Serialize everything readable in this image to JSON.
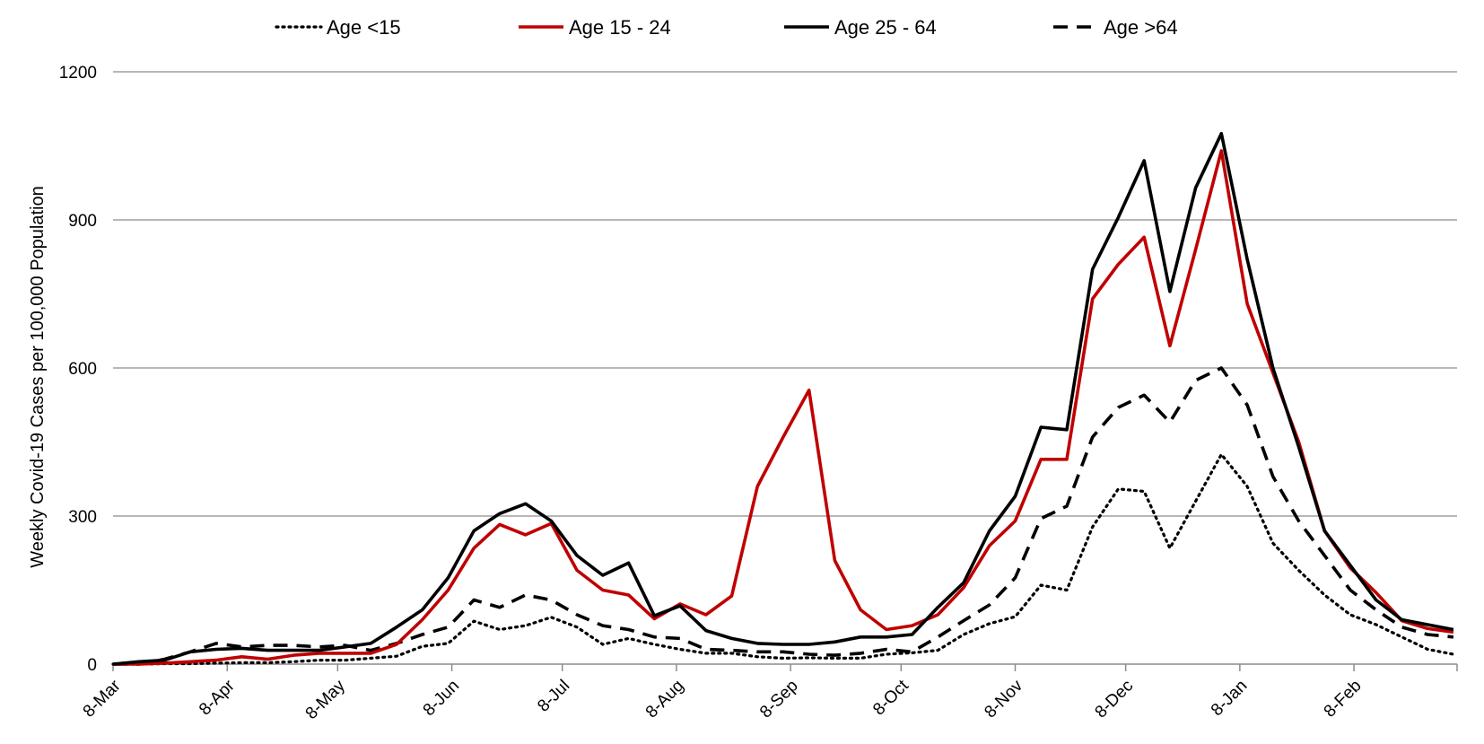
{
  "chart_data": {
    "type": "line",
    "title": "",
    "xlabel": "",
    "ylabel": "Weekly Covid-19 Cases per 100,000 Population",
    "ylim": [
      0,
      1200
    ],
    "yticks": [
      0,
      300,
      600,
      900,
      1200
    ],
    "xlim": [
      "2020-03-08",
      "2021-03-08"
    ],
    "xticks": [
      {
        "date": "2020-03-08",
        "label": "8-Mar"
      },
      {
        "date": "2020-04-08",
        "label": "8-Apr"
      },
      {
        "date": "2020-05-08",
        "label": "8-May"
      },
      {
        "date": "2020-06-08",
        "label": "8-Jun"
      },
      {
        "date": "2020-07-08",
        "label": "8-Jul"
      },
      {
        "date": "2020-08-08",
        "label": "8-Aug"
      },
      {
        "date": "2020-09-08",
        "label": "8-Sep"
      },
      {
        "date": "2020-10-08",
        "label": "8-Oct"
      },
      {
        "date": "2020-11-08",
        "label": "8-Nov"
      },
      {
        "date": "2020-12-08",
        "label": "8-Dec"
      },
      {
        "date": "2021-01-08",
        "label": "8-Jan"
      },
      {
        "date": "2021-02-08",
        "label": "8-Feb"
      }
    ],
    "grid": "horizontal",
    "legend_position": "top",
    "x": [
      "2020-03-08",
      "2020-03-15",
      "2020-03-22",
      "2020-03-29",
      "2020-04-05",
      "2020-04-12",
      "2020-04-19",
      "2020-04-26",
      "2020-05-03",
      "2020-05-10",
      "2020-05-17",
      "2020-05-24",
      "2020-05-31",
      "2020-06-07",
      "2020-06-14",
      "2020-06-21",
      "2020-06-28",
      "2020-07-05",
      "2020-07-12",
      "2020-07-19",
      "2020-07-26",
      "2020-08-02",
      "2020-08-09",
      "2020-08-16",
      "2020-08-23",
      "2020-08-30",
      "2020-09-06",
      "2020-09-13",
      "2020-09-20",
      "2020-09-27",
      "2020-10-04",
      "2020-10-11",
      "2020-10-18",
      "2020-10-25",
      "2020-11-01",
      "2020-11-08",
      "2020-11-15",
      "2020-11-22",
      "2020-11-29",
      "2020-12-06",
      "2020-12-13",
      "2020-12-20",
      "2020-12-27",
      "2021-01-03",
      "2021-01-10",
      "2021-01-17",
      "2021-01-24",
      "2021-01-31",
      "2021-02-07",
      "2021-02-14",
      "2021-02-21",
      "2021-02-28",
      "2021-03-07"
    ],
    "series": [
      {
        "name": "Age <15",
        "color": "#000000",
        "style": "dotted",
        "values": [
          0,
          0,
          1,
          1,
          2,
          3,
          3,
          5,
          8,
          8,
          12,
          16,
          36,
          42,
          87,
          70,
          78,
          95,
          75,
          40,
          52,
          40,
          30,
          22,
          22,
          15,
          12,
          13,
          12,
          12,
          20,
          23,
          28,
          60,
          82,
          96,
          160,
          150,
          278,
          355,
          350,
          235,
          330,
          425,
          360,
          245,
          190,
          140,
          100,
          80,
          55,
          30,
          20
        ]
      },
      {
        "name": "Age 15 - 24",
        "color": "#c00000",
        "style": "solid",
        "values": [
          0,
          0,
          2,
          5,
          8,
          15,
          10,
          18,
          22,
          22,
          22,
          40,
          90,
          150,
          235,
          283,
          262,
          285,
          190,
          150,
          140,
          92,
          122,
          100,
          138,
          360,
          460,
          555,
          210,
          110,
          70,
          78,
          100,
          155,
          240,
          290,
          415,
          415,
          740,
          810,
          865,
          645,
          840,
          1040,
          730,
          590,
          450,
          270,
          195,
          145,
          88,
          72,
          65
        ]
      },
      {
        "name": "Age 25 - 64",
        "color": "#000000",
        "style": "solid",
        "values": [
          0,
          5,
          8,
          25,
          30,
          32,
          28,
          28,
          28,
          35,
          42,
          75,
          110,
          175,
          270,
          305,
          325,
          290,
          220,
          180,
          205,
          98,
          118,
          68,
          52,
          42,
          40,
          40,
          45,
          55,
          55,
          60,
          115,
          165,
          270,
          340,
          480,
          475,
          800,
          905,
          1020,
          755,
          965,
          1075,
          820,
          600,
          440,
          270,
          200,
          130,
          90,
          80,
          70
        ]
      },
      {
        "name": "Age >64",
        "color": "#000000",
        "style": "dashed",
        "values": [
          0,
          0,
          10,
          25,
          42,
          35,
          38,
          38,
          35,
          38,
          28,
          42,
          60,
          75,
          130,
          115,
          140,
          130,
          100,
          78,
          70,
          55,
          52,
          30,
          28,
          25,
          25,
          20,
          18,
          22,
          30,
          25,
          55,
          88,
          120,
          175,
          295,
          320,
          460,
          520,
          545,
          490,
          575,
          600,
          525,
          380,
          290,
          220,
          150,
          110,
          75,
          60,
          55
        ]
      }
    ]
  }
}
